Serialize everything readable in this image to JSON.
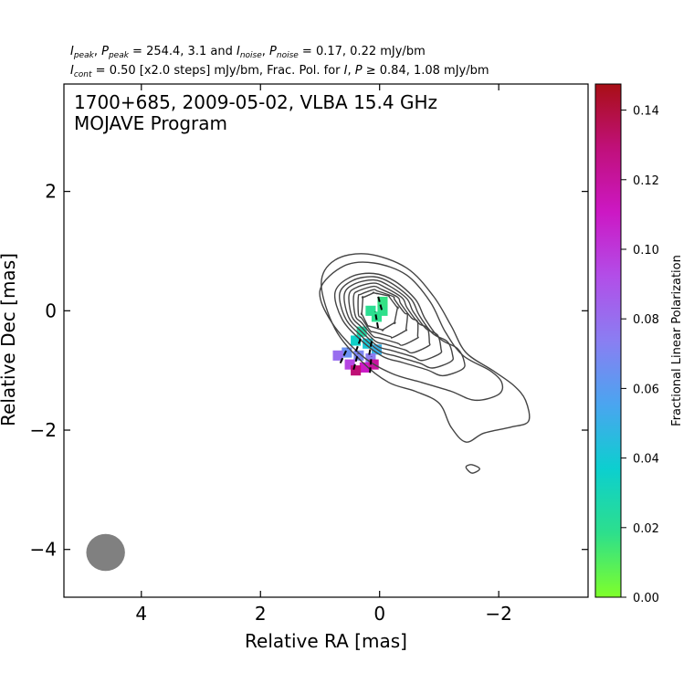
{
  "header": {
    "line1": {
      "i_peak": "I",
      "i_peak_sub": "peak",
      "sep1": ", ",
      "p_peak": "P",
      "p_peak_sub": "peak",
      "eq1": " = 254.4, 3.1 and ",
      "i_noise": "I",
      "i_noise_sub": "noise",
      "sep2": ", ",
      "p_noise": "P",
      "p_noise_sub": "noise",
      "eq2": " = 0.17, 0.22 mJy/bm"
    },
    "line2": {
      "i_cont": "I",
      "i_cont_sub": "cont",
      "text1": " = 0.50 [x2.0 steps] mJy/bm, Frac. Pol. for ",
      "i": "I",
      "sep": ", ",
      "p": "P",
      "text2": " ≥  0.84, 1.08 mJy/bm"
    }
  },
  "chart_data": {
    "type": "heatmap",
    "title_line1": "1700+685, 2009-05-02, VLBA 15.4 GHz",
    "title_line2": "MOJAVE Program",
    "xlabel": "Relative RA [mas]",
    "ylabel": "Relative Dec [mas]",
    "xlim": [
      5.3,
      -3.5
    ],
    "ylim": [
      -4.8,
      3.8
    ],
    "xticks": [
      4,
      2,
      0,
      -2
    ],
    "xtick_labels": [
      "4",
      "2",
      "0",
      "−2"
    ],
    "yticks": [
      2,
      0,
      -2,
      -4
    ],
    "ytick_labels": [
      "2",
      "0",
      "−2",
      "−4"
    ],
    "contour_levels_mJy": [
      0.5,
      1,
      2,
      4,
      8,
      16,
      32,
      64,
      128
    ],
    "core_position": [
      0,
      0
    ],
    "beam": {
      "ra": 4.6,
      "dec": -4.05,
      "width_mas": 0.65,
      "height_mas": 0.62,
      "color": "#808080"
    },
    "frac_pol_pixels": [
      {
        "ra": -0.05,
        "dec": 0.0,
        "value": 0.018
      },
      {
        "ra": 0.15,
        "dec": 0.0,
        "value": 0.02
      },
      {
        "ra": -0.05,
        "dec": 0.15,
        "value": 0.017
      },
      {
        "ra": 0.05,
        "dec": -0.1,
        "value": 0.019
      },
      {
        "ra": 0.3,
        "dec": -0.35,
        "value": 0.025
      },
      {
        "ra": 0.4,
        "dec": -0.5,
        "value": 0.035
      },
      {
        "ra": 0.2,
        "dec": -0.55,
        "value": 0.04
      },
      {
        "ra": 0.05,
        "dec": -0.65,
        "value": 0.05
      },
      {
        "ra": 0.55,
        "dec": -0.7,
        "value": 0.065
      },
      {
        "ra": 0.35,
        "dec": -0.75,
        "value": 0.07
      },
      {
        "ra": 0.7,
        "dec": -0.75,
        "value": 0.08
      },
      {
        "ra": 0.15,
        "dec": -0.8,
        "value": 0.075
      },
      {
        "ra": 0.5,
        "dec": -0.9,
        "value": 0.095
      },
      {
        "ra": 0.25,
        "dec": -0.95,
        "value": 0.11
      },
      {
        "ra": 0.1,
        "dec": -0.9,
        "value": 0.12
      },
      {
        "ra": 0.4,
        "dec": -1.0,
        "value": 0.13
      }
    ],
    "evpa_ticks": [
      {
        "ra": 0.0,
        "dec": 0.15,
        "angle_deg": -15
      },
      {
        "ra": 0.05,
        "dec": -0.15,
        "angle_deg": -10
      },
      {
        "ra": 0.35,
        "dec": -0.55,
        "angle_deg": 20
      },
      {
        "ra": 0.15,
        "dec": -0.6,
        "angle_deg": 10
      },
      {
        "ra": 0.6,
        "dec": -0.75,
        "angle_deg": 25
      },
      {
        "ra": 0.4,
        "dec": -0.85,
        "angle_deg": 15
      },
      {
        "ra": 0.15,
        "dec": -0.9,
        "angle_deg": 5
      }
    ],
    "colorbar": {
      "label": "Fractional Linear Polarization",
      "range": [
        0.0,
        0.1475
      ],
      "ticks": [
        0.0,
        0.02,
        0.04,
        0.06,
        0.08,
        0.1,
        0.12,
        0.14
      ],
      "tick_labels": [
        "0.00",
        "0.02",
        "0.04",
        "0.06",
        "0.08",
        "0.10",
        "0.12",
        "0.14"
      ],
      "colormap": [
        "#7fff2a",
        "#2ddf8c",
        "#0ccfcf",
        "#4aa5f0",
        "#8a7ef2",
        "#b24ee8",
        "#cc18c4",
        "#c0107a",
        "#a80f15"
      ]
    },
    "contour_color": "#444444"
  }
}
